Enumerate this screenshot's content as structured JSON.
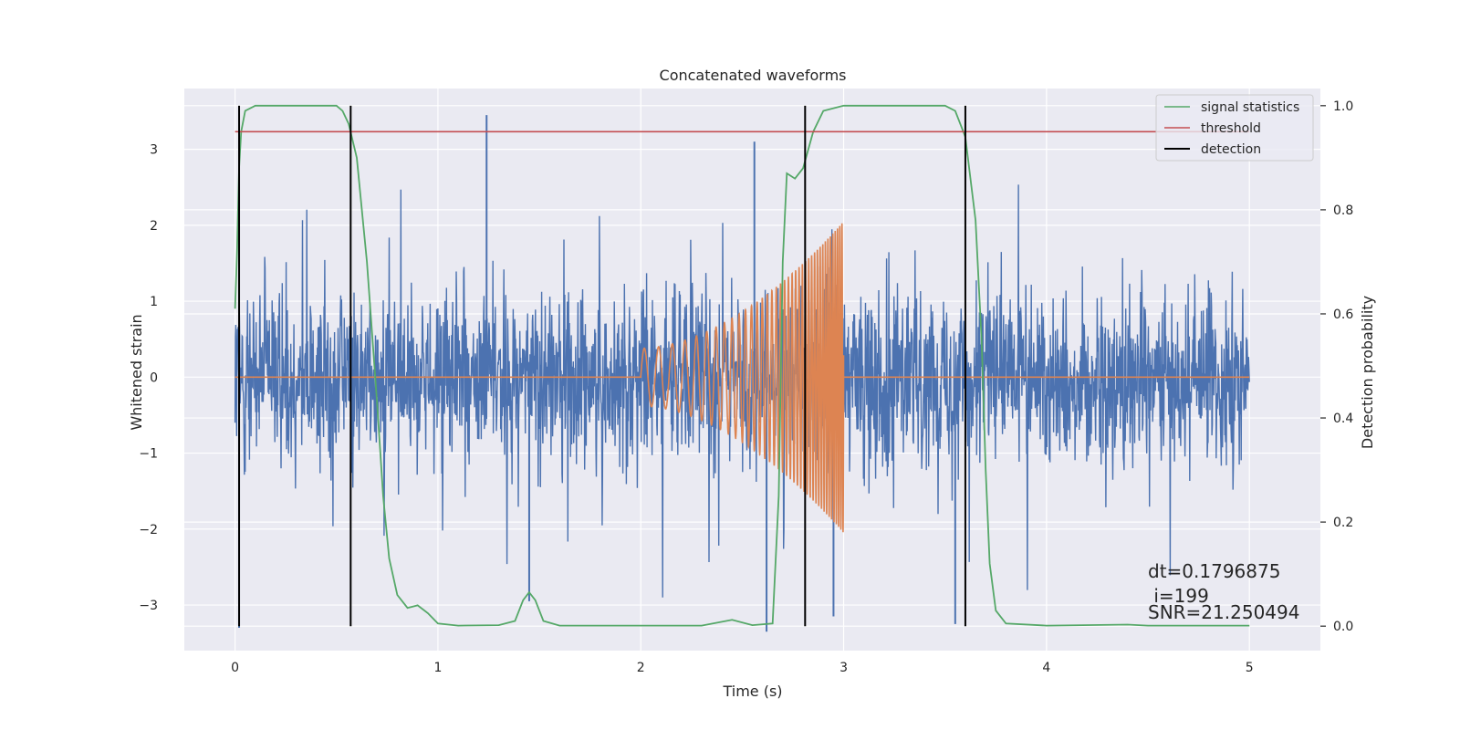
{
  "chart_data": {
    "type": "line",
    "title": "Concatenated waveforms",
    "xlabel": "Time (s)",
    "ylabel": "Whitened strain",
    "y2label": "Detection probability",
    "xlim": [
      -0.25,
      5.35
    ],
    "ylim": [
      -3.6,
      3.8
    ],
    "y2lim": [
      -0.047,
      1.033
    ],
    "x_ticks": [
      0,
      1,
      2,
      3,
      4,
      5
    ],
    "y_ticks": [
      -3,
      -2,
      -1,
      0,
      1,
      2,
      3
    ],
    "y2_ticks": [
      0.0,
      0.2,
      0.4,
      0.6,
      0.8,
      1.0
    ],
    "x_tick_labels": [
      "0",
      "1",
      "2",
      "3",
      "4",
      "5"
    ],
    "y_tick_labels": [
      "−3",
      "−2",
      "−1",
      "0",
      "1",
      "2",
      "3"
    ],
    "y2_tick_labels": [
      "0.0",
      "0.2",
      "0.4",
      "0.6",
      "0.8",
      "1.0"
    ],
    "grid": true,
    "legend_position": "top-right",
    "colors": {
      "strain": "#4c72b0",
      "template": "#dd8452",
      "signal_statistics": "#55a868",
      "threshold": "#c44e52",
      "detection": "#000000",
      "plot_bg": "#eaeaf2",
      "grid": "#ffffff"
    },
    "legend": [
      {
        "key": "signal_statistics",
        "label": "signal statistics"
      },
      {
        "key": "threshold",
        "label": "threshold"
      },
      {
        "key": "detection",
        "label": "detection"
      }
    ],
    "series": [
      {
        "key": "strain",
        "axis": "left",
        "style": "noise",
        "x_range": [
          0,
          5
        ],
        "typical_amplitude": [
          -2.3,
          2.3
        ],
        "peak_spikes": [
          {
            "x": 0.02,
            "y": -3.3
          },
          {
            "x": 1.24,
            "y": 3.45
          },
          {
            "x": 1.45,
            "y": -2.95
          },
          {
            "x": 2.56,
            "y": 3.1
          },
          {
            "x": 2.62,
            "y": -3.35
          },
          {
            "x": 3.55,
            "y": -3.25
          },
          {
            "x": 2.95,
            "y": -3.15
          }
        ]
      },
      {
        "key": "template",
        "axis": "left",
        "style": "chirp",
        "start": 2.0,
        "end": 3.0,
        "start_amplitude": 0.38,
        "end_amplitude": 2.05,
        "baseline": 0
      },
      {
        "key": "signal_statistics",
        "axis": "right",
        "points": [
          [
            0.0,
            0.61
          ],
          [
            0.01,
            0.72
          ],
          [
            0.02,
            0.88
          ],
          [
            0.03,
            0.95
          ],
          [
            0.05,
            0.99
          ],
          [
            0.1,
            1.0
          ],
          [
            0.5,
            1.0
          ],
          [
            0.53,
            0.99
          ],
          [
            0.56,
            0.965
          ],
          [
            0.6,
            0.9
          ],
          [
            0.65,
            0.7
          ],
          [
            0.7,
            0.43
          ],
          [
            0.73,
            0.25
          ],
          [
            0.76,
            0.13
          ],
          [
            0.8,
            0.06
          ],
          [
            0.85,
            0.035
          ],
          [
            0.9,
            0.04
          ],
          [
            0.95,
            0.025
          ],
          [
            1.0,
            0.005
          ],
          [
            1.1,
            0.001
          ],
          [
            1.3,
            0.002
          ],
          [
            1.38,
            0.01
          ],
          [
            1.42,
            0.05
          ],
          [
            1.45,
            0.065
          ],
          [
            1.48,
            0.05
          ],
          [
            1.52,
            0.01
          ],
          [
            1.6,
            0.001
          ],
          [
            2.3,
            0.001
          ],
          [
            2.45,
            0.012
          ],
          [
            2.55,
            0.002
          ],
          [
            2.65,
            0.005
          ],
          [
            2.68,
            0.25
          ],
          [
            2.7,
            0.7
          ],
          [
            2.72,
            0.87
          ],
          [
            2.76,
            0.86
          ],
          [
            2.8,
            0.88
          ],
          [
            2.85,
            0.95
          ],
          [
            2.9,
            0.99
          ],
          [
            3.0,
            1.0
          ],
          [
            3.5,
            1.0
          ],
          [
            3.55,
            0.99
          ],
          [
            3.6,
            0.94
          ],
          [
            3.65,
            0.78
          ],
          [
            3.68,
            0.55
          ],
          [
            3.7,
            0.3
          ],
          [
            3.72,
            0.12
          ],
          [
            3.75,
            0.03
          ],
          [
            3.8,
            0.005
          ],
          [
            4.0,
            0.001
          ],
          [
            4.4,
            0.003
          ],
          [
            4.5,
            0.001
          ],
          [
            5.0,
            0.001
          ]
        ]
      },
      {
        "key": "threshold",
        "axis": "right",
        "points": [
          [
            0.0,
            0.95
          ],
          [
            5.0,
            0.95
          ]
        ]
      }
    ],
    "detections": [
      0.02,
      0.57,
      2.81,
      3.6
    ],
    "annotations": [
      "dt=0.1796875",
      " i=199",
      "SNR=21.250494"
    ]
  }
}
